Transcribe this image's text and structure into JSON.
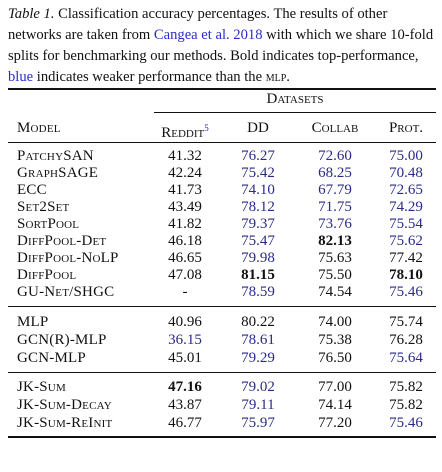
{
  "caption": {
    "label": "Table 1.",
    "text_1": " Classification accuracy percentages. The results of other networks are taken from ",
    "link": "Cangea et al. 2018",
    "text_2": " with which we share 10-fold splits for benchmarking our methods. Bold indicates top-performance, ",
    "blue_word": "blue",
    "text_3": " indicates weaker performance than the ",
    "mlp": "mlp",
    "text_4": "."
  },
  "header": {
    "datasets": "Datasets",
    "model": "Model",
    "reddit": "Reddit",
    "reddit_sup": "5",
    "dd": "DD",
    "collab": "Collab",
    "prot": "Prot."
  },
  "group1": [
    {
      "model": "PatchySAN",
      "reddit": "41.32",
      "dd": "76.27",
      "collab": "72.60",
      "prot": "75.00"
    },
    {
      "model": "GraphSAGE",
      "reddit": "42.24",
      "dd": "75.42",
      "collab": "68.25",
      "prot": "70.48"
    },
    {
      "model": "ECC",
      "reddit": "41.73",
      "dd": "74.10",
      "collab": "67.79",
      "prot": "72.65"
    },
    {
      "model": "Set2Set",
      "reddit": "43.49",
      "dd": "78.12",
      "collab": "71.75",
      "prot": "74.29"
    },
    {
      "model": "SortPool",
      "reddit": "41.82",
      "dd": "79.37",
      "collab": "73.76",
      "prot": "75.54"
    },
    {
      "model": "DiffPool-Det",
      "reddit": "46.18",
      "dd": "75.47",
      "collab": "82.13",
      "prot": "75.62"
    },
    {
      "model": "DiffPool-NoLP",
      "reddit": "46.65",
      "dd": "79.98",
      "collab": "75.63",
      "prot": "77.42"
    },
    {
      "model": "DiffPool",
      "reddit": "47.08",
      "dd": "81.15",
      "collab": "75.50",
      "prot": "78.10"
    },
    {
      "model": "GU-Net/SHGC",
      "reddit": "-",
      "dd": "78.59",
      "collab": "74.54",
      "prot": "75.46"
    }
  ],
  "group2": [
    {
      "model": "MLP",
      "reddit": "40.96",
      "dd": "80.22",
      "collab": "74.00",
      "prot": "75.74"
    },
    {
      "model": "GCN(R)-MLP",
      "reddit": "36.15",
      "dd": "78.61",
      "collab": "75.38",
      "prot": "76.28"
    },
    {
      "model": "GCN-MLP",
      "reddit": "45.01",
      "dd": "79.29",
      "collab": "76.50",
      "prot": "75.64"
    }
  ],
  "group3": [
    {
      "model": "JK-Sum",
      "reddit": "47.16",
      "dd": "79.02",
      "collab": "77.00",
      "prot": "75.82"
    },
    {
      "model": "JK-Sum-Decay",
      "reddit": "43.87",
      "dd": "79.11",
      "collab": "74.14",
      "prot": "75.82"
    },
    {
      "model": "JK-Sum-ReInit",
      "reddit": "46.77",
      "dd": "75.97",
      "collab": "77.20",
      "prot": "75.46"
    }
  ],
  "colors": {
    "blue_value": "#2a2a88",
    "link": "#2b2bd0",
    "text": "#111111"
  }
}
